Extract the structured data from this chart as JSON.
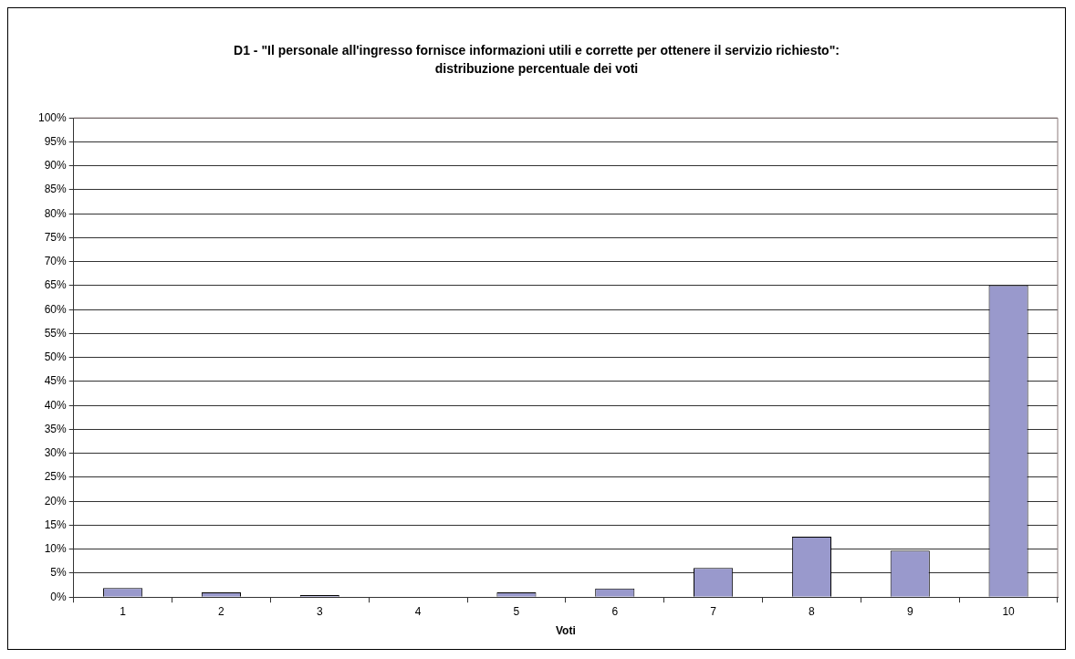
{
  "chart_data": {
    "type": "bar",
    "title": "D1 - \"Il personale all'ingresso fornisce informazioni utili e corrette per ottenere il servizio richiesto\":",
    "subtitle": "distribuzione percentuale dei voti",
    "xlabel": "Voti",
    "categories": [
      "1",
      "2",
      "3",
      "4",
      "5",
      "6",
      "7",
      "8",
      "9",
      "10"
    ],
    "values": [
      1.9,
      1.0,
      0.4,
      0,
      1.0,
      1.8,
      6.1,
      12.6,
      9.7,
      65.1
    ],
    "color": "#9999cc",
    "ylim": [
      0,
      100
    ],
    "yticks": [
      {
        "value": 0,
        "label": "0%"
      },
      {
        "value": 5,
        "label": "5%"
      },
      {
        "value": 10,
        "label": "10%"
      },
      {
        "value": 15,
        "label": "15%"
      },
      {
        "value": 20,
        "label": "20%"
      },
      {
        "value": 25,
        "label": "25%"
      },
      {
        "value": 30,
        "label": "30%"
      },
      {
        "value": 35,
        "label": "35%"
      },
      {
        "value": 40,
        "label": "40%"
      },
      {
        "value": 45,
        "label": "45%"
      },
      {
        "value": 50,
        "label": "50%"
      },
      {
        "value": 55,
        "label": "55%"
      },
      {
        "value": 60,
        "label": "60%"
      },
      {
        "value": 65,
        "label": "65%"
      },
      {
        "value": 70,
        "label": "70%"
      },
      {
        "value": 75,
        "label": "75%"
      },
      {
        "value": 80,
        "label": "80%"
      },
      {
        "value": 85,
        "label": "85%"
      },
      {
        "value": 90,
        "label": "90%"
      },
      {
        "value": 95,
        "label": "95%"
      },
      {
        "value": 100,
        "label": "100%"
      }
    ],
    "grid": "y",
    "legend": false
  }
}
